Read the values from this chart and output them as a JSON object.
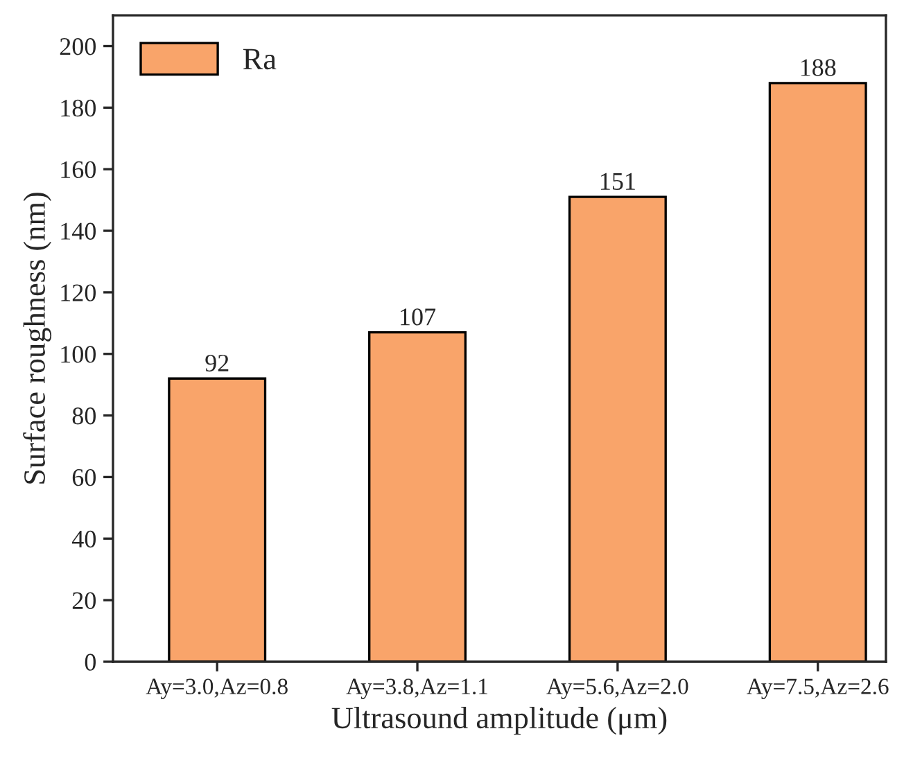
{
  "chart_data": {
    "type": "bar",
    "xlabel": "Ultrasound amplitude (μm)",
    "ylabel": "Surface roughness (nm)",
    "categories": [
      "Ay=3.0,Az=0.8",
      "Ay=3.8,Az=1.1",
      "Ay=5.6,Az=2.0",
      "Ay=7.5,Az=2.6"
    ],
    "series": [
      {
        "name": "Ra",
        "color": "#f9a46a",
        "values": [
          92,
          107,
          151,
          188
        ]
      }
    ],
    "ylim": [
      0,
      210
    ],
    "yticks": [
      0,
      20,
      40,
      60,
      80,
      100,
      120,
      140,
      160,
      180,
      200
    ],
    "data_labels": true,
    "legend": "top left",
    "grid": false
  }
}
